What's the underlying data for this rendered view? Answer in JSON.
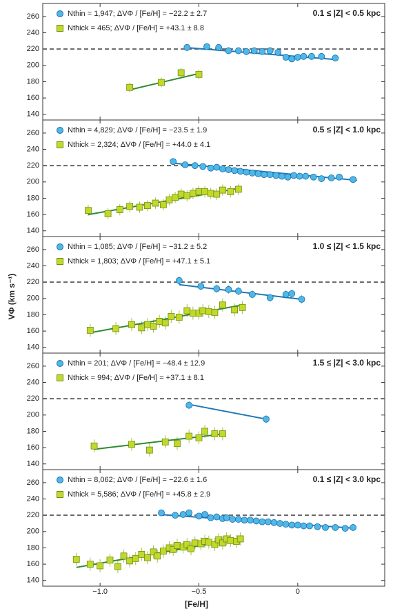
{
  "xlabel": "[Fe/H]",
  "ylabel": "VΦ (km s⁻¹)",
  "chart_data": [
    {
      "type": "scatter",
      "title": "0.1 ≤ |Z| < 0.5 kpc",
      "xlim": [
        -1.29,
        0.44
      ],
      "ylim": [
        133,
        276
      ],
      "yticks": [
        140,
        160,
        180,
        200,
        220,
        240,
        260
      ],
      "hline": 220,
      "series": [
        {
          "name": "Nthin = 1,947; ΔVΦ / [Fe/H] = −22.2 ± 2.7",
          "color": "#4fb8e8",
          "marker": "circle",
          "x": [
            -0.56,
            -0.46,
            -0.4,
            -0.35,
            -0.3,
            -0.26,
            -0.22,
            -0.18,
            -0.14,
            -0.1,
            -0.06,
            -0.03,
            0.0,
            0.03,
            0.07,
            0.12,
            0.19
          ],
          "values": [
            222,
            223,
            222,
            218,
            218,
            217,
            218,
            217,
            218,
            216,
            210,
            208,
            210,
            211,
            211,
            211,
            209
          ],
          "error": 4,
          "fit": {
            "x": [
              -0.57,
              0.2
            ],
            "y": [
              222,
              207
            ]
          }
        },
        {
          "name": "Nthick = 465; ΔVΦ / [Fe/H] = +43.1 ± 8.8",
          "color": "#c3d82a",
          "marker": "square",
          "x": [
            -0.85,
            -0.69,
            -0.59,
            -0.5
          ],
          "values": [
            173,
            179,
            191,
            189
          ],
          "error": 6,
          "fit": {
            "x": [
              -0.85,
              -0.5
            ],
            "y": [
              170,
              190
            ]
          }
        }
      ]
    },
    {
      "type": "scatter",
      "title": "0.5 ≤ |Z| < 1.0 kpc",
      "xlim": [
        -1.29,
        0.44
      ],
      "ylim": [
        133,
        276
      ],
      "yticks": [
        140,
        160,
        180,
        200,
        220,
        240,
        260
      ],
      "hline": 220,
      "series": [
        {
          "name": "Nthin = 4,829; ΔVΦ / [Fe/H] = −23.5 ± 1.9",
          "color": "#4fb8e8",
          "marker": "circle",
          "x": [
            -0.63,
            -0.57,
            -0.52,
            -0.48,
            -0.44,
            -0.41,
            -0.38,
            -0.35,
            -0.32,
            -0.29,
            -0.26,
            -0.23,
            -0.2,
            -0.17,
            -0.14,
            -0.11,
            -0.08,
            -0.05,
            -0.02,
            0.01,
            0.04,
            0.08,
            0.12,
            0.17,
            0.21,
            0.28
          ],
          "values": [
            225,
            221,
            220,
            219,
            217,
            218,
            216,
            215,
            214,
            213,
            212,
            211,
            210,
            209,
            209,
            208,
            207,
            206,
            208,
            207,
            207,
            206,
            204,
            205,
            206,
            203
          ],
          "error": 3,
          "fit": {
            "x": [
              -0.63,
              0.3
            ],
            "y": [
              223,
              202
            ]
          }
        },
        {
          "name": "Nthick = 2,324; ΔVΦ / [Fe/H] = +44.0 ± 4.1",
          "color": "#c3d82a",
          "marker": "square",
          "x": [
            -1.06,
            -0.96,
            -0.9,
            -0.85,
            -0.8,
            -0.76,
            -0.72,
            -0.68,
            -0.65,
            -0.62,
            -0.59,
            -0.56,
            -0.53,
            -0.5,
            -0.47,
            -0.44,
            -0.41,
            -0.38,
            -0.34,
            -0.3
          ],
          "values": [
            165,
            161,
            166,
            170,
            169,
            171,
            174,
            172,
            178,
            181,
            185,
            183,
            186,
            188,
            188,
            186,
            185,
            190,
            188,
            191
          ],
          "error": 7,
          "fit": {
            "x": [
              -1.06,
              -0.3
            ],
            "y": [
              160,
              192
            ]
          }
        }
      ]
    },
    {
      "type": "scatter",
      "title": "1.0 ≤ |Z| < 1.5 kpc",
      "xlim": [
        -1.29,
        0.44
      ],
      "ylim": [
        133,
        276
      ],
      "yticks": [
        140,
        160,
        180,
        200,
        220,
        240,
        260
      ],
      "hline": 220,
      "series": [
        {
          "name": "Nthin = 1,085; ΔVΦ / [Fe/H] = −31.2 ± 5.2",
          "color": "#4fb8e8",
          "marker": "circle",
          "x": [
            -0.6,
            -0.49,
            -0.41,
            -0.35,
            -0.3,
            -0.23,
            -0.14,
            -0.06,
            -0.03,
            0.02
          ],
          "values": [
            222,
            215,
            212,
            211,
            209,
            205,
            201,
            205,
            206,
            199
          ],
          "error": 5,
          "fit": {
            "x": [
              -0.6,
              0.02
            ],
            "y": [
              217,
              199
            ]
          }
        },
        {
          "name": "Nthick = 1,803; ΔVΦ / [Fe/H] = +47.1 ± 5.1",
          "color": "#c3d82a",
          "marker": "square",
          "x": [
            -1.05,
            -0.92,
            -0.84,
            -0.79,
            -0.76,
            -0.73,
            -0.7,
            -0.67,
            -0.64,
            -0.6,
            -0.56,
            -0.53,
            -0.5,
            -0.48,
            -0.45,
            -0.42,
            -0.38,
            -0.32,
            -0.28
          ],
          "values": [
            161,
            163,
            168,
            164,
            168,
            166,
            172,
            170,
            178,
            177,
            185,
            182,
            182,
            185,
            184,
            183,
            192,
            186,
            189
          ],
          "error": 8,
          "fit": {
            "x": [
              -1.05,
              -0.28
            ],
            "y": [
              158,
              192
            ]
          }
        }
      ]
    },
    {
      "type": "scatter",
      "title": "1.5 ≤ |Z| < 3.0 kpc",
      "xlim": [
        -1.29,
        0.44
      ],
      "ylim": [
        133,
        276
      ],
      "yticks": [
        140,
        160,
        180,
        200,
        220,
        240,
        260
      ],
      "hline": 220,
      "series": [
        {
          "name": "Nthin = 201; ΔVΦ / [Fe/H] = −48.4 ± 12.9",
          "color": "#4fb8e8",
          "marker": "circle",
          "x": [
            -0.55,
            -0.16
          ],
          "values": [
            212,
            195
          ],
          "error": 5,
          "fit": {
            "x": [
              -0.55,
              -0.16
            ],
            "y": [
              213,
              195
            ]
          }
        },
        {
          "name": "Nthick = 994; ΔVΦ / [Fe/H] = +37.1 ± 8.1",
          "color": "#c3d82a",
          "marker": "square",
          "x": [
            -1.03,
            -0.84,
            -0.75,
            -0.67,
            -0.61,
            -0.55,
            -0.5,
            -0.47,
            -0.42,
            -0.38
          ],
          "values": [
            162,
            164,
            157,
            167,
            165,
            174,
            172,
            180,
            177,
            177
          ],
          "error": 8,
          "fit": {
            "x": [
              -1.03,
              -0.37
            ],
            "y": [
              158,
              177
            ]
          }
        }
      ]
    },
    {
      "type": "scatter",
      "title": "0.1 ≤ |Z| < 3.0 kpc",
      "xlim": [
        -1.29,
        0.44
      ],
      "ylim": [
        133,
        276
      ],
      "yticks": [
        140,
        160,
        180,
        200,
        220,
        240,
        260
      ],
      "hline": 220,
      "xticks": [
        {
          "value": -1.0,
          "label": "−1.0"
        },
        {
          "value": -0.5,
          "label": "−0.5"
        },
        0
      ],
      "series": [
        {
          "name": "Nthin = 8,062; ΔVΦ / [Fe/H] = −22.6 ± 1.6",
          "color": "#4fb8e8",
          "marker": "circle",
          "x": [
            -0.69,
            -0.62,
            -0.58,
            -0.55,
            -0.5,
            -0.47,
            -0.44,
            -0.41,
            -0.38,
            -0.36,
            -0.33,
            -0.3,
            -0.27,
            -0.24,
            -0.21,
            -0.18,
            -0.15,
            -0.12,
            -0.09,
            -0.06,
            -0.03,
            0.0,
            0.03,
            0.06,
            0.1,
            0.14,
            0.19,
            0.24,
            0.28
          ],
          "values": [
            223,
            220,
            221,
            223,
            219,
            221,
            217,
            218,
            216,
            217,
            215,
            215,
            214,
            214,
            213,
            212,
            212,
            211,
            210,
            209,
            208,
            208,
            207,
            207,
            206,
            205,
            205,
            204,
            205
          ],
          "error": 3,
          "fit": {
            "x": [
              -0.7,
              0.29
            ],
            "y": [
              221,
              204
            ]
          }
        },
        {
          "name": "Nthick = 5,586; ΔVΦ / [Fe/H] = +45.8 ± 2.9",
          "color": "#c3d82a",
          "marker": "square",
          "x": [
            -1.12,
            -1.05,
            -1.0,
            -0.95,
            -0.91,
            -0.88,
            -0.85,
            -0.82,
            -0.79,
            -0.76,
            -0.73,
            -0.71,
            -0.68,
            -0.65,
            -0.63,
            -0.61,
            -0.58,
            -0.56,
            -0.54,
            -0.52,
            -0.49,
            -0.47,
            -0.45,
            -0.42,
            -0.4,
            -0.38,
            -0.36,
            -0.34,
            -0.31,
            -0.29
          ],
          "values": [
            166,
            160,
            158,
            165,
            157,
            170,
            164,
            167,
            172,
            168,
            175,
            170,
            176,
            180,
            178,
            183,
            181,
            184,
            179,
            186,
            185,
            188,
            187,
            184,
            190,
            186,
            191,
            189,
            188,
            191
          ],
          "error": 8,
          "fit": {
            "x": [
              -1.12,
              -0.3
            ],
            "y": [
              156,
              191
            ]
          }
        }
      ]
    }
  ]
}
